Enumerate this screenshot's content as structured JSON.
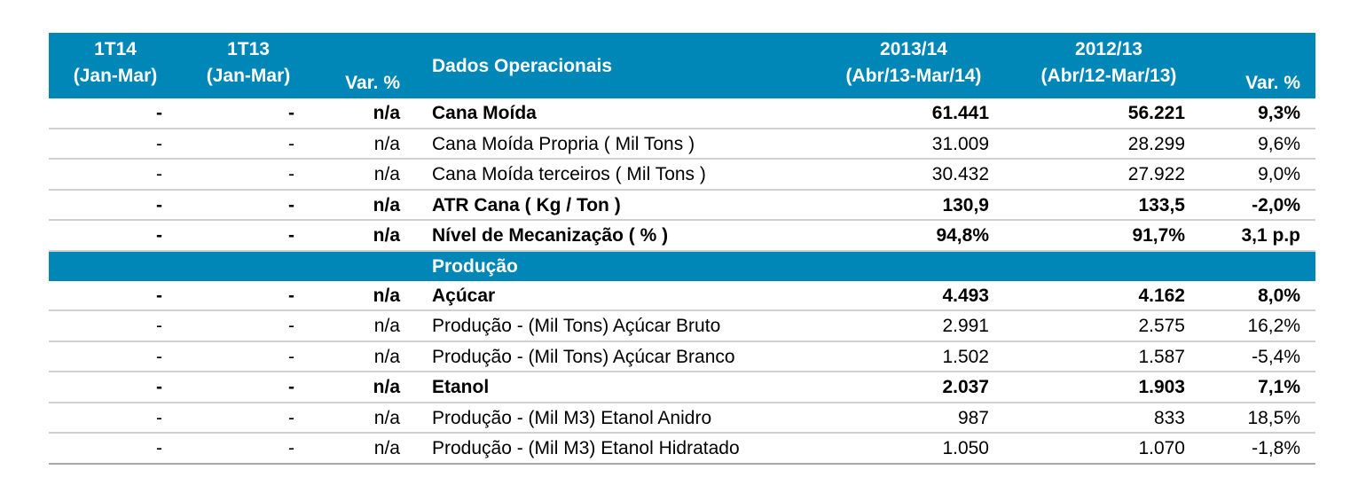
{
  "header": {
    "col1_line1": "1T14",
    "col1_line2": "(Jan-Mar)",
    "col2_line1": "1T13",
    "col2_line2": "(Jan-Mar)",
    "col3": "Var. %",
    "col4": "Dados Operacionais",
    "col5_line1": "2013/14",
    "col5_line2": "(Abr/13-Mar/14)",
    "col6_line1": "2012/13",
    "col6_line2": "(Abr/12-Mar/13)",
    "col7": "Var. %"
  },
  "section_operacionais": [
    {
      "q14": "-",
      "q13": "-",
      "var_q": "n/a",
      "label": "Cana Moída",
      "y1314": "61.441",
      "y1213": "56.221",
      "var_y": "9,3%",
      "bold": true
    },
    {
      "q14": "-",
      "q13": "-",
      "var_q": "n/a",
      "label": "Cana Moída Propria ( Mil Tons )",
      "y1314": "31.009",
      "y1213": "28.299",
      "var_y": "9,6%",
      "bold": false
    },
    {
      "q14": "-",
      "q13": "-",
      "var_q": "n/a",
      "label": "Cana Moída terceiros ( Mil Tons )",
      "y1314": "30.432",
      "y1213": "27.922",
      "var_y": "9,0%",
      "bold": false
    },
    {
      "q14": "-",
      "q13": "-",
      "var_q": "n/a",
      "label": "ATR Cana ( Kg / Ton )",
      "y1314": "130,9",
      "y1213": "133,5",
      "var_y": "-2,0%",
      "bold": true
    },
    {
      "q14": "-",
      "q13": "-",
      "var_q": "n/a",
      "label": "Nível de Mecanização ( % )",
      "y1314": "94,8%",
      "y1213": "91,7%",
      "var_y": "3,1  p.p",
      "bold": true
    }
  ],
  "section_producao_title": "Produção",
  "section_producao": [
    {
      "q14": "-",
      "q13": "-",
      "var_q": "n/a",
      "label": "Açúcar",
      "y1314": "4.493",
      "y1213": "4.162",
      "var_y": "8,0%",
      "bold": true
    },
    {
      "q14": "-",
      "q13": "-",
      "var_q": "n/a",
      "label": "Produção - (Mil Tons) Açúcar Bruto",
      "y1314": "2.991",
      "y1213": "2.575",
      "var_y": "16,2%",
      "bold": false
    },
    {
      "q14": "-",
      "q13": "-",
      "var_q": "n/a",
      "label": "Produção - (Mil Tons) Açúcar Branco",
      "y1314": "1.502",
      "y1213": "1.587",
      "var_y": "-5,4%",
      "bold": false
    },
    {
      "q14": "-",
      "q13": "-",
      "var_q": "n/a",
      "label": "Etanol",
      "y1314": "2.037",
      "y1213": "1.903",
      "var_y": "7,1%",
      "bold": true
    },
    {
      "q14": "-",
      "q13": "-",
      "var_q": "n/a",
      "label": "Produção - (Mil M3) Etanol Anidro",
      "y1314": "987",
      "y1213": "833",
      "var_y": "18,5%",
      "bold": false
    },
    {
      "q14": "-",
      "q13": "-",
      "var_q": "n/a",
      "label": "Produção - (Mil M3) Etanol Hidratado",
      "y1314": "1.050",
      "y1213": "1.070",
      "var_y": "-1,8%",
      "bold": false
    }
  ],
  "colors": {
    "header_bg": "#0087b8",
    "header_text": "#ffffff",
    "rule": "#d0d0d0"
  }
}
